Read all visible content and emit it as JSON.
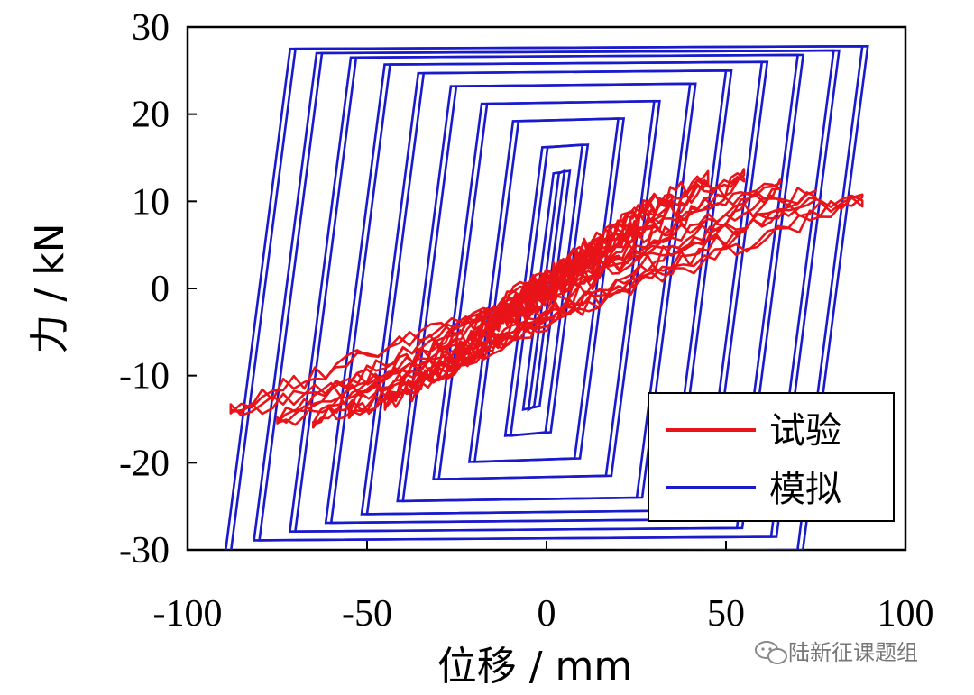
{
  "chart_data": {
    "type": "line",
    "xlabel": "位移 / mm",
    "ylabel": "力 / kN",
    "xlim": [
      -100,
      100
    ],
    "ylim": [
      -30,
      30
    ],
    "xticks": [
      "-100",
      "-50",
      "0",
      "50",
      "100"
    ],
    "yticks": [
      "30",
      "20",
      "10",
      "0",
      "-10",
      "-20",
      "-30"
    ],
    "grid": false,
    "legend_position": "bottom-right",
    "series": [
      {
        "name": "试验",
        "color": "#e8141a",
        "loops": [
          {
            "amp": 15,
            "fmax": 4.5,
            "fmin": -4
          },
          {
            "amp": 25,
            "fmax": 7,
            "fmin": -7
          },
          {
            "amp": 35,
            "fmax": 10.5,
            "fmin": -10.5
          },
          {
            "amp": 45,
            "fmax": 12.5,
            "fmin": -13
          },
          {
            "amp": 55,
            "fmax": 13,
            "fmin": -14
          },
          {
            "amp": 65,
            "fmax": 12,
            "fmin": -15
          },
          {
            "amp": 75,
            "fmax": 11,
            "fmin": -15
          },
          {
            "amp": 88,
            "fmax": 10.5,
            "fmin": -14
          }
        ]
      },
      {
        "name": "模拟",
        "color": "#1a1acd",
        "loops": [
          {
            "amp": 5,
            "fmax": 13.5,
            "fmin": -13.5
          },
          {
            "amp": 10,
            "fmax": 16.5,
            "fmin": -16.5
          },
          {
            "amp": 20,
            "fmax": 19.5,
            "fmin": -19.5
          },
          {
            "amp": 30,
            "fmax": 21.5,
            "fmin": -21.5
          },
          {
            "amp": 40,
            "fmax": 23.5,
            "fmin": -24
          },
          {
            "amp": 50,
            "fmax": 25,
            "fmin": -25.5
          },
          {
            "amp": 60,
            "fmax": 26,
            "fmin": -26.5
          },
          {
            "amp": 70,
            "fmax": 26.8,
            "fmin": -27.5
          },
          {
            "amp": 80,
            "fmax": 27.3,
            "fmin": -28.5
          },
          {
            "amp": 88,
            "fmax": 27.8,
            "fmin": -30
          }
        ]
      }
    ]
  },
  "legend": {
    "items": [
      {
        "label": "试验",
        "color": "#e8141a"
      },
      {
        "label": "模拟",
        "color": "#1a1acd"
      }
    ]
  },
  "watermark": {
    "text": "陆新征课题组"
  }
}
